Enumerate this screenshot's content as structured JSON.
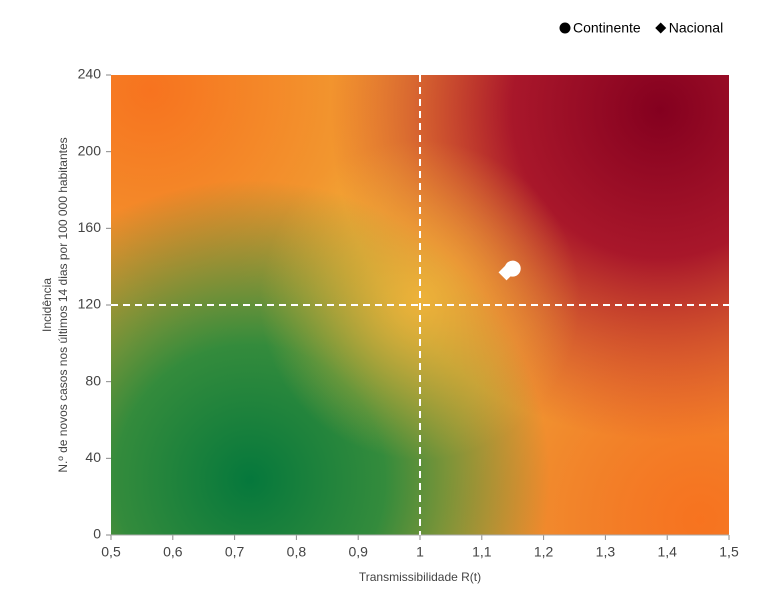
{
  "chart_data": {
    "type": "scatter",
    "xlabel": "Transmissibilidade R(t)",
    "ylabel": [
      "Incidência",
      "N.º de novos casos nos últimos 14 dias por 100 000 habitantes"
    ],
    "xlim": [
      0.5,
      1.5
    ],
    "xticks": [
      {
        "value": 0.5,
        "label": "0,5"
      },
      {
        "value": 0.6,
        "label": "0,6"
      },
      {
        "value": 0.7,
        "label": "0,7"
      },
      {
        "value": 0.8,
        "label": "0,8"
      },
      {
        "value": 0.9,
        "label": "0,9"
      },
      1,
      {
        "value": 1.1,
        "label": "1,1"
      },
      {
        "value": 1.2,
        "label": "1,2"
      },
      {
        "value": 1.3,
        "label": "1,3"
      },
      {
        "value": 1.4,
        "label": "1,4"
      },
      {
        "value": 1.5,
        "label": "1,5"
      }
    ],
    "ylim": [
      0,
      240
    ],
    "yticks": [
      0,
      40,
      80,
      120,
      160,
      200,
      240
    ],
    "reference_lines": {
      "x": 1,
      "y": 120
    },
    "legend": "top-right",
    "series": [
      {
        "name": "Continente",
        "marker": "circle",
        "color": "#ffffff",
        "x": [
          1.15
        ],
        "y": [
          139
        ]
      },
      {
        "name": "Nacional",
        "marker": "diamond",
        "color": "#ffffff",
        "x": [
          1.14
        ],
        "y": [
          137
        ]
      }
    ]
  }
}
